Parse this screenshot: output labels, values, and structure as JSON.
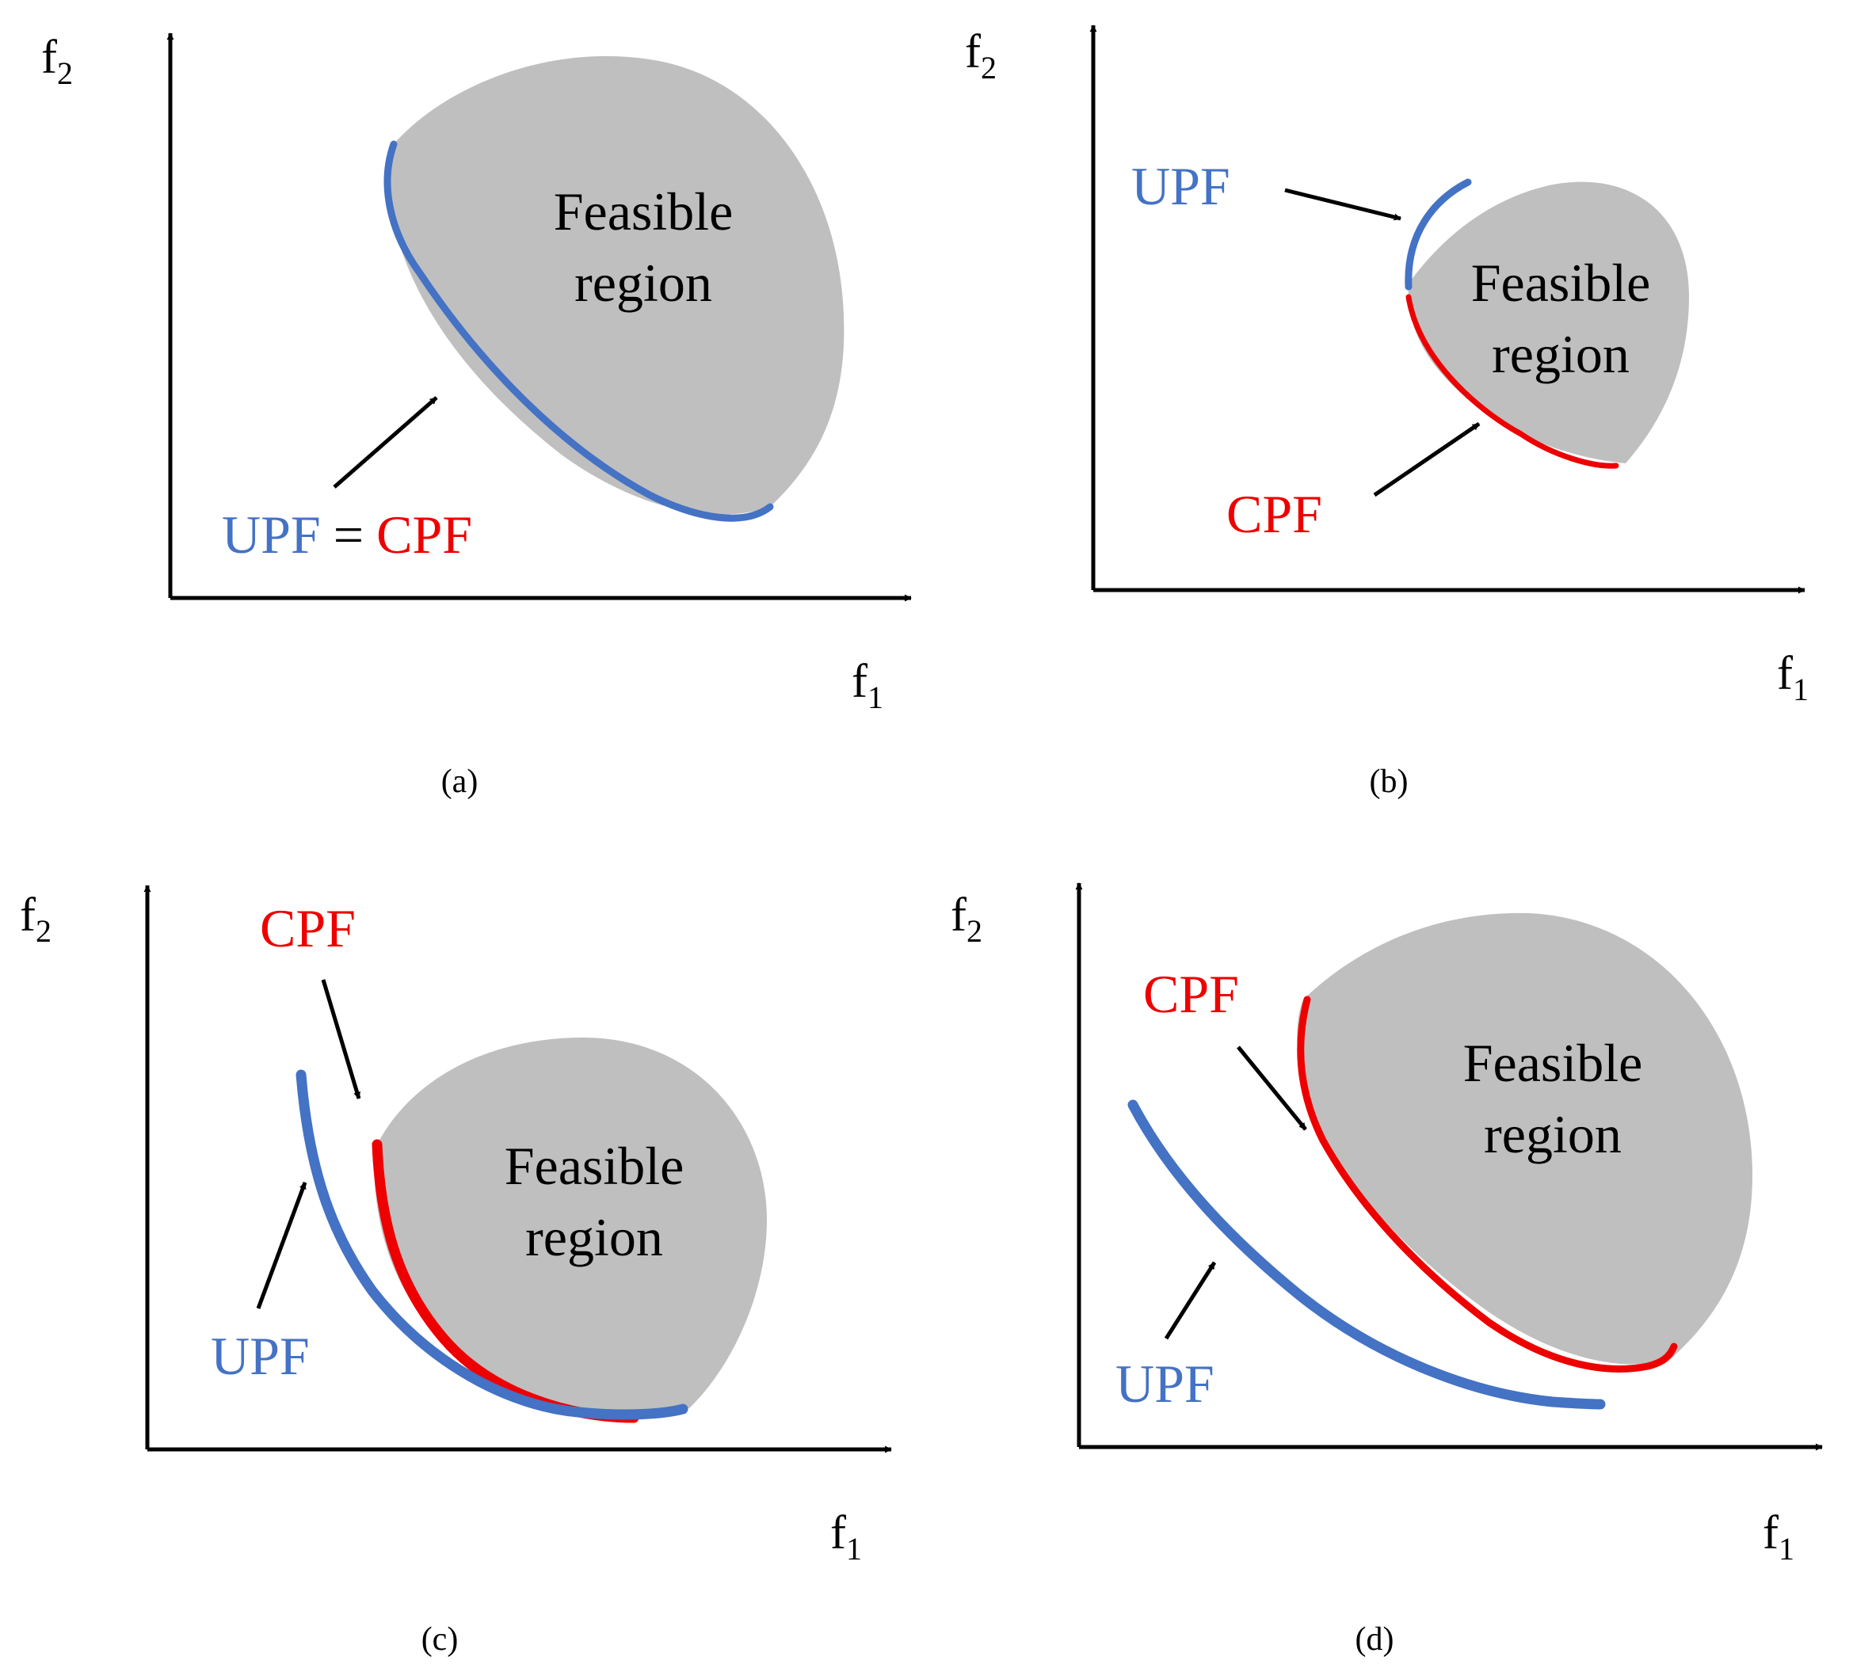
{
  "colors": {
    "upf": "#4472C4",
    "cpf": "#EE0000",
    "region": "#BFBFBF",
    "axis": "#000000",
    "text": "#000000"
  },
  "labels": {
    "f_symbol": "f",
    "f1_subscript": "1",
    "f2_subscript": "2",
    "feasible_line1": "Feasible",
    "feasible_line2": "region",
    "upf": "UPF",
    "cpf": "CPF",
    "equals": "="
  },
  "panels": {
    "a": {
      "caption": "(a)"
    },
    "b": {
      "caption": "(b)"
    },
    "c": {
      "caption": "(c)"
    },
    "d": {
      "caption": "(d)"
    }
  }
}
